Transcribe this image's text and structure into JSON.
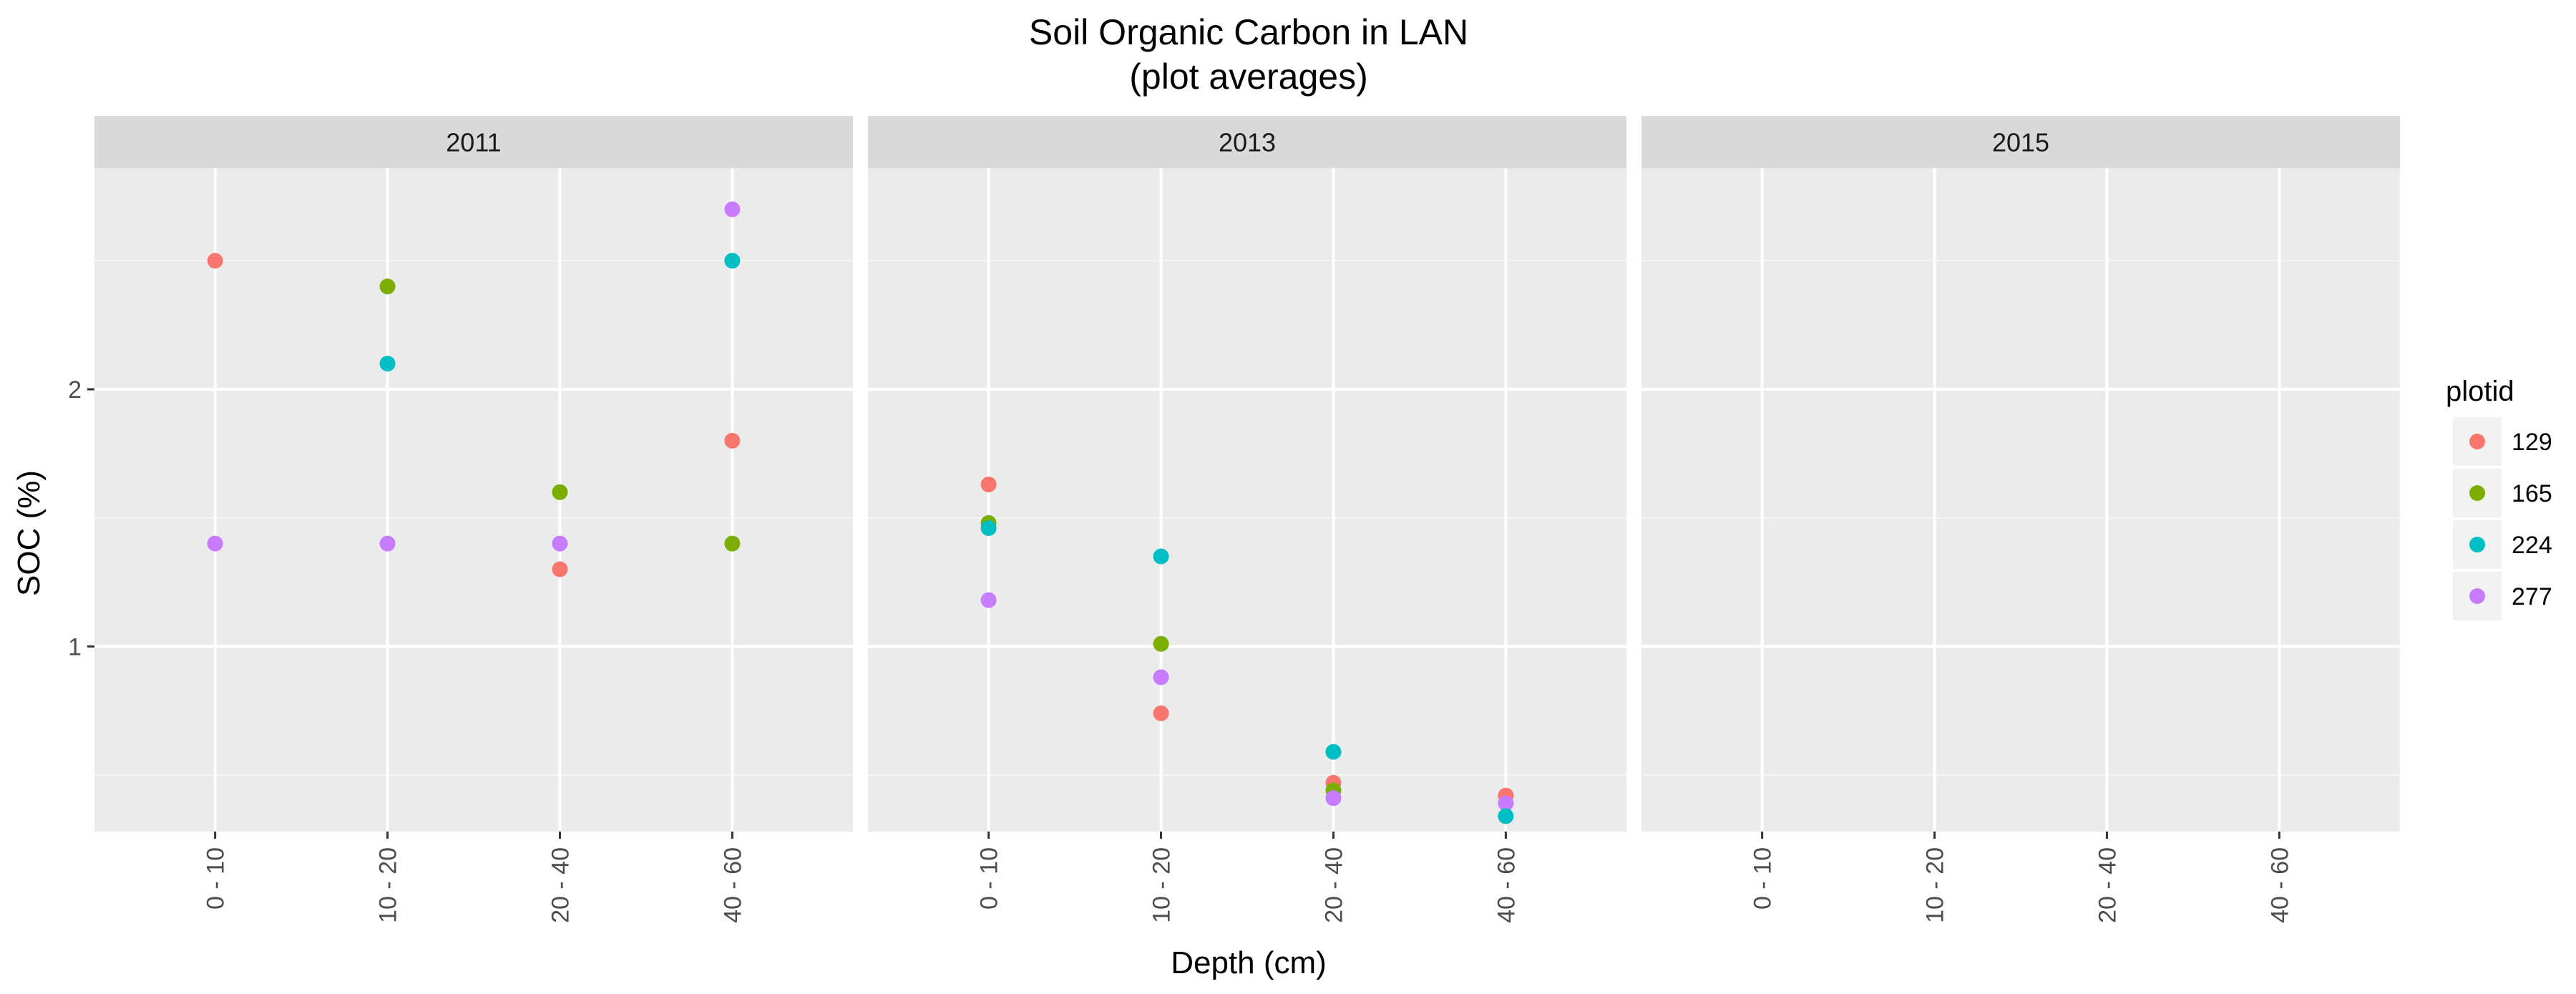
{
  "chart_data": {
    "type": "scatter",
    "title": "Soil Organic Carbon in LAN",
    "subtitle": "(plot averages)",
    "xlabel": "Depth (cm)",
    "ylabel": "SOC (%)",
    "categories": [
      "0 - 10",
      "10 - 20",
      "20 - 40",
      "40 - 60"
    ],
    "y_ticks": [
      1,
      2
    ],
    "ylim": [
      0.28,
      2.86
    ],
    "grid": true,
    "legend_position": "right",
    "legend_title": "plotid",
    "series": [
      {
        "name": "129",
        "color": "#F8766D"
      },
      {
        "name": "165",
        "color": "#7CAE00"
      },
      {
        "name": "224",
        "color": "#00BFC4"
      },
      {
        "name": "277",
        "color": "#C77CFF"
      }
    ],
    "facets": [
      {
        "label": "2011",
        "points": [
          {
            "series": "129",
            "x": "0 - 10",
            "y": 2.5
          },
          {
            "series": "277",
            "x": "0 - 10",
            "y": 1.4
          },
          {
            "series": "165",
            "x": "10 - 20",
            "y": 2.4
          },
          {
            "series": "224",
            "x": "10 - 20",
            "y": 2.1
          },
          {
            "series": "277",
            "x": "10 - 20",
            "y": 1.4
          },
          {
            "series": "165",
            "x": "20 - 40",
            "y": 1.6
          },
          {
            "series": "277",
            "x": "20 - 40",
            "y": 1.4
          },
          {
            "series": "129",
            "x": "20 - 40",
            "y": 1.3
          },
          {
            "series": "277",
            "x": "40 - 60",
            "y": 2.7
          },
          {
            "series": "224",
            "x": "40 - 60",
            "y": 2.5
          },
          {
            "series": "129",
            "x": "40 - 60",
            "y": 1.8
          },
          {
            "series": "165",
            "x": "40 - 60",
            "y": 1.4
          }
        ]
      },
      {
        "label": "2013",
        "points": [
          {
            "series": "129",
            "x": "0 - 10",
            "y": 1.63
          },
          {
            "series": "165",
            "x": "0 - 10",
            "y": 1.48
          },
          {
            "series": "224",
            "x": "0 - 10",
            "y": 1.46
          },
          {
            "series": "277",
            "x": "0 - 10",
            "y": 1.18
          },
          {
            "series": "224",
            "x": "10 - 20",
            "y": 1.35
          },
          {
            "series": "165",
            "x": "10 - 20",
            "y": 1.01
          },
          {
            "series": "277",
            "x": "10 - 20",
            "y": 0.88
          },
          {
            "series": "129",
            "x": "10 - 20",
            "y": 0.74
          },
          {
            "series": "224",
            "x": "20 - 40",
            "y": 0.59
          },
          {
            "series": "129",
            "x": "20 - 40",
            "y": 0.47
          },
          {
            "series": "165",
            "x": "20 - 40",
            "y": 0.44
          },
          {
            "series": "277",
            "x": "20 - 40",
            "y": 0.41
          },
          {
            "series": "129",
            "x": "40 - 60",
            "y": 0.42
          },
          {
            "series": "277",
            "x": "40 - 60",
            "y": 0.39
          },
          {
            "series": "224",
            "x": "40 - 60",
            "y": 0.34
          }
        ]
      },
      {
        "label": "2015",
        "points": []
      }
    ]
  }
}
